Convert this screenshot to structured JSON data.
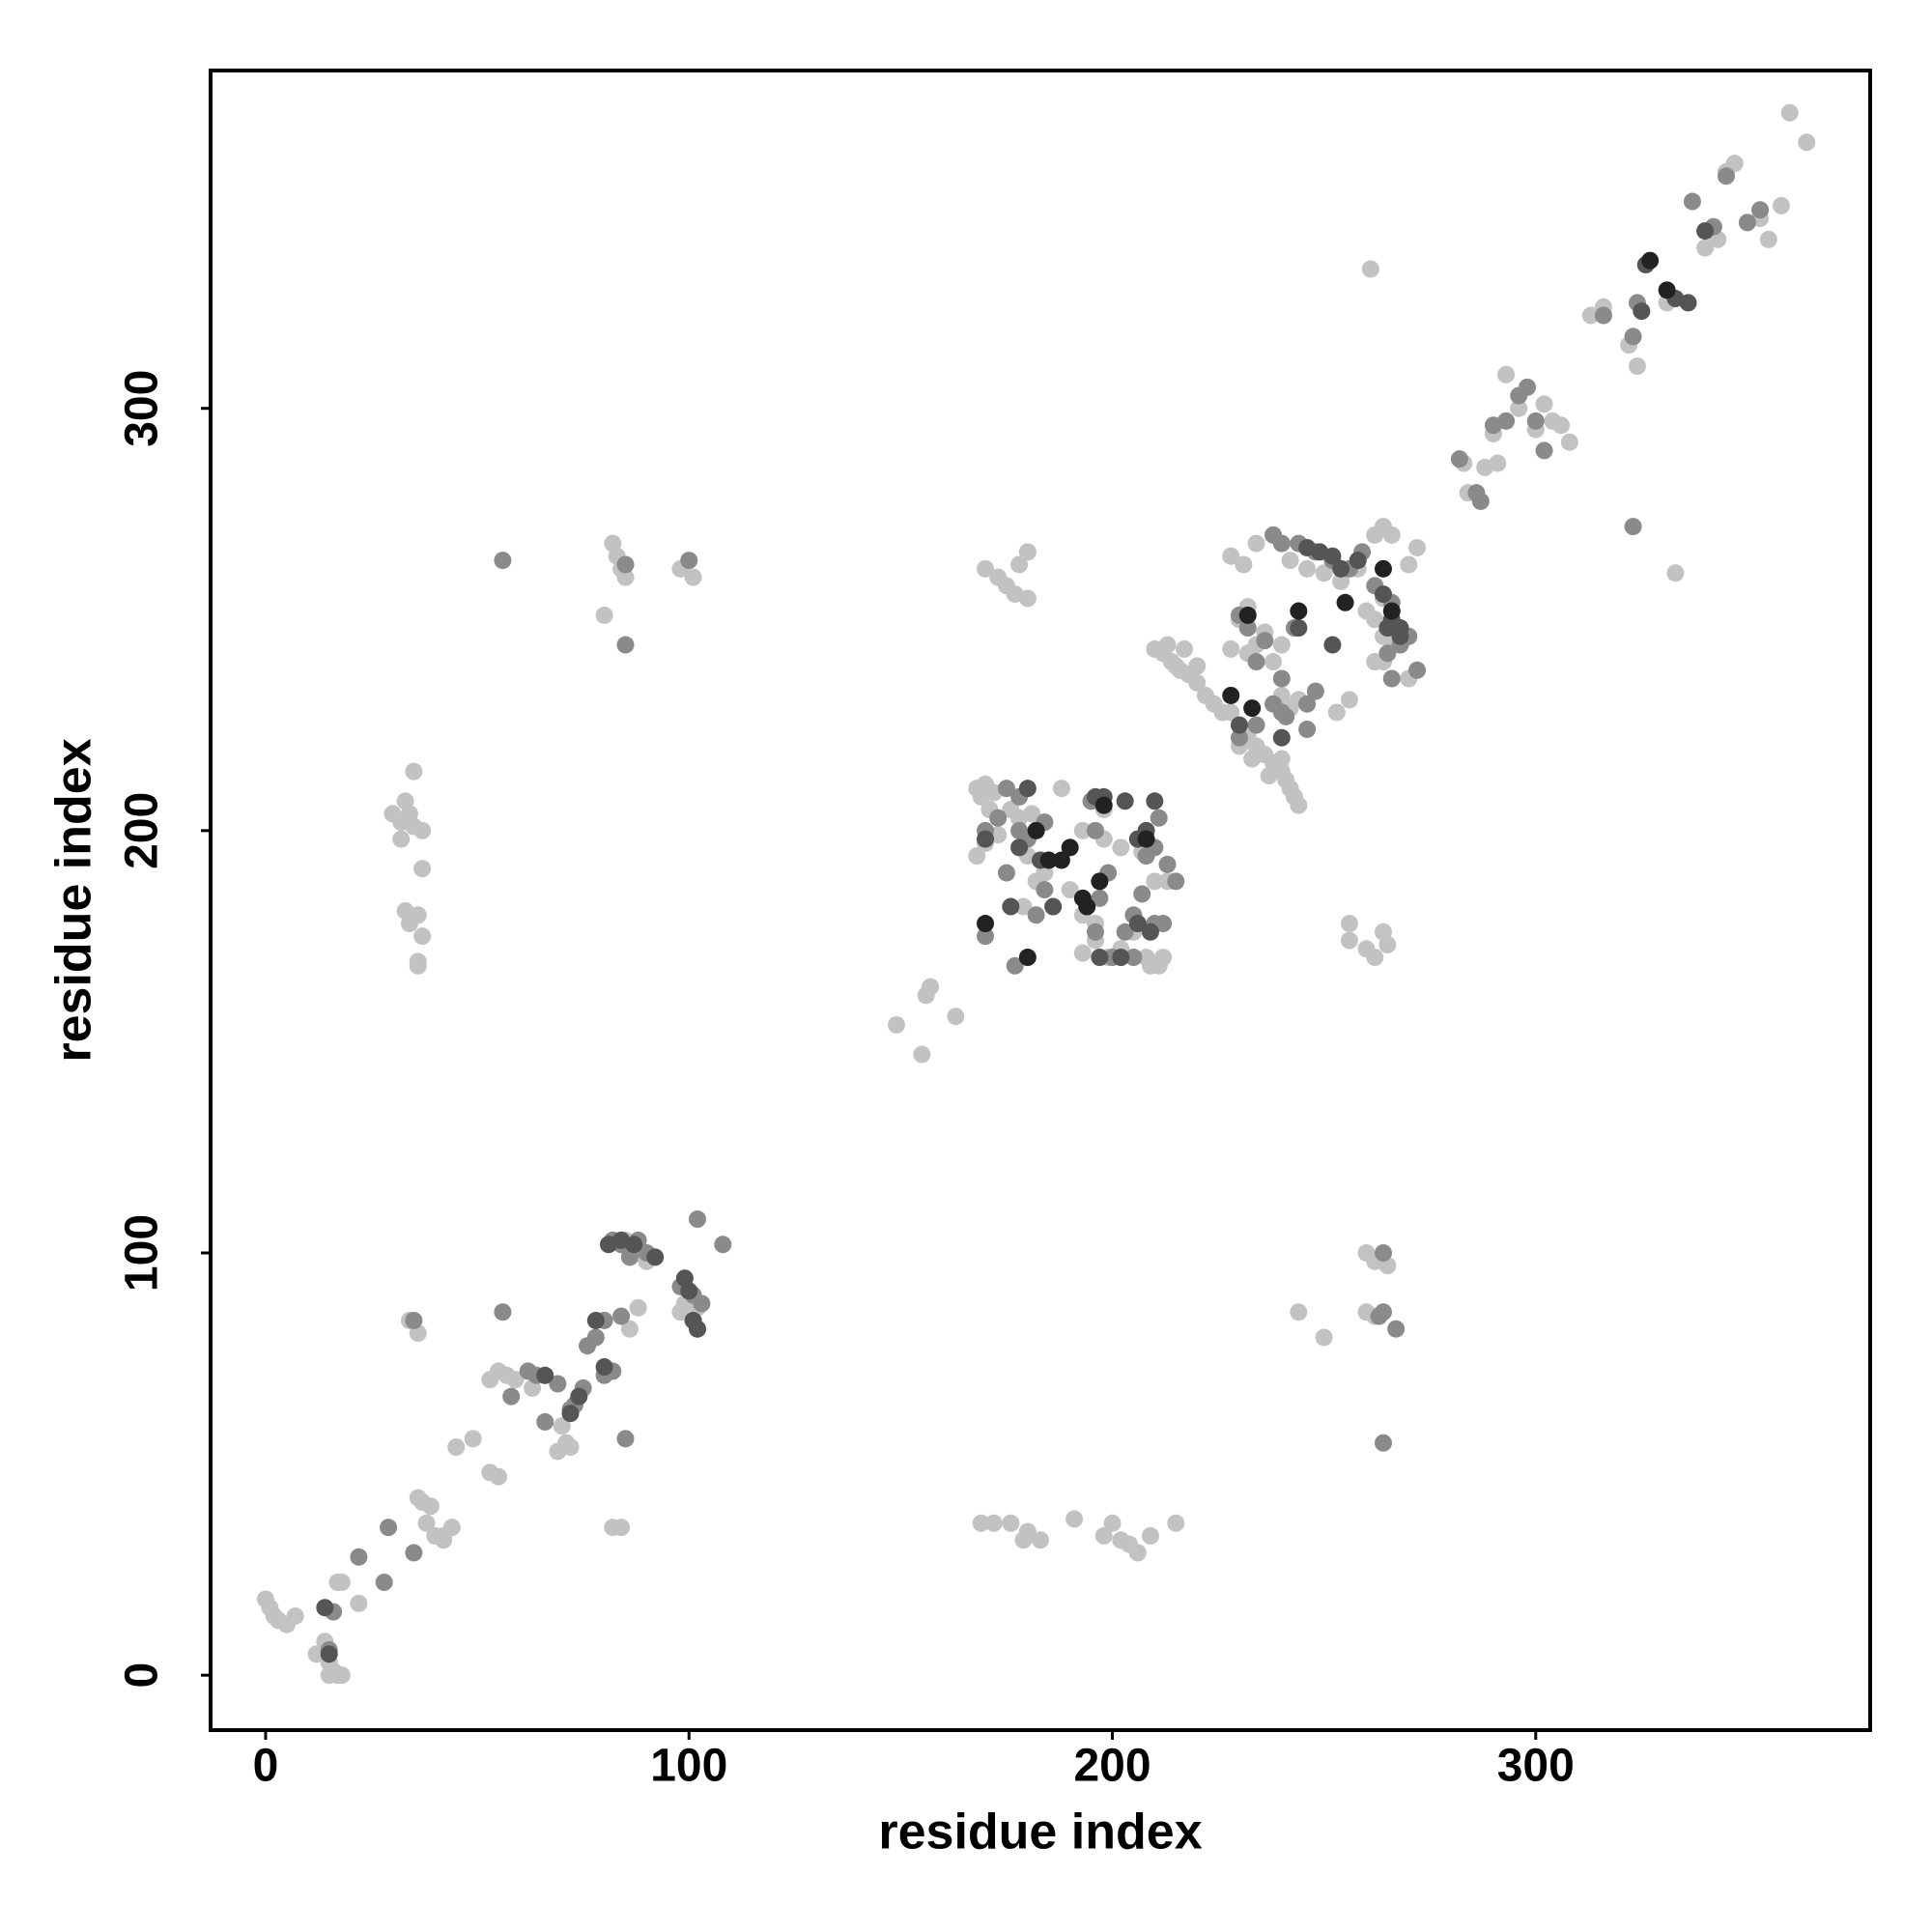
{
  "chart_data": {
    "type": "scatter",
    "x_label": "residue index",
    "y_label": "residue index",
    "xlim": [
      -13,
      379
    ],
    "ylim": [
      -13,
      380
    ],
    "xticks": [
      0,
      100,
      200,
      300
    ],
    "yticks": [
      0,
      100,
      200,
      300
    ],
    "grid": false,
    "series": [
      {
        "color": "#c2c2c2",
        "x": [
          0,
          1,
          2,
          3,
          5,
          7,
          14,
          12,
          15,
          16,
          17,
          18,
          15,
          17,
          18,
          22,
          36,
          37,
          39,
          38,
          40,
          42,
          44,
          42,
          45,
          49,
          55,
          53,
          53,
          55,
          57,
          59,
          63,
          70,
          71,
          69,
          72,
          86,
          88,
          85,
          88,
          90,
          98,
          99,
          101,
          102,
          30,
          32,
          33,
          34,
          32,
          35,
          37,
          35,
          37,
          33,
          34,
          36,
          37,
          36,
          36,
          83,
          84,
          80,
          82,
          85,
          98,
          101,
          34,
          36,
          82,
          84,
          149,
          156,
          157,
          163,
          155,
          168,
          169,
          170,
          172,
          171,
          168,
          170,
          173,
          176,
          178,
          181,
          180,
          182,
          184,
          179,
          186,
          188,
          193,
          195,
          198,
          190,
          193,
          196,
          199,
          202,
          205,
          208,
          209,
          211,
          212,
          210,
          207,
          213,
          198,
          202,
          193,
          196,
          170,
          173,
          175,
          177,
          178,
          180,
          180,
          169,
          172,
          176,
          180,
          183,
          191,
          198,
          202,
          204,
          206,
          209,
          215,
          200,
          179,
          210,
          212,
          214,
          216,
          218,
          220,
          222,
          224,
          226,
          228,
          215,
          213,
          217,
          220,
          232,
          234,
          236,
          238,
          240,
          242,
          243,
          244,
          237,
          241,
          233,
          230,
          232,
          234,
          230,
          232,
          228,
          236,
          240,
          238,
          240,
          242,
          244,
          253,
          256,
          240,
          228,
          231,
          234,
          238,
          242,
          246,
          250,
          254,
          258,
          260,
          262,
          264,
          266,
          270,
          262,
          264,
          266,
          272,
          270,
          264,
          256,
          256,
          260,
          262,
          264,
          265,
          260,
          262,
          265,
          260,
          262,
          244,
          250,
          264,
          262,
          288,
          283,
          284,
          291,
          290,
          293,
          296,
          300,
          302,
          308,
          313,
          316,
          322,
          324,
          331,
          340,
          343,
          345,
          347,
          353,
          355,
          358,
          360,
          364,
          261,
          333,
          304,
          306
        ],
        "y": [
          18,
          16,
          14,
          13,
          12,
          14,
          8,
          5,
          3,
          1,
          0,
          0,
          0,
          22,
          22,
          17,
          42,
          41,
          40,
          36,
          33,
          33,
          35,
          32,
          54,
          56,
          47,
          48,
          70,
          72,
          71,
          70,
          68,
          59,
          55,
          53,
          54,
          82,
          87,
          103,
          100,
          98,
          86,
          88,
          84,
          87,
          204,
          202,
          207,
          204,
          198,
          201,
          200,
          214,
          191,
          181,
          178,
          180,
          175,
          169,
          168,
          265,
          262,
          251,
          268,
          260,
          262,
          260,
          84,
          81,
          35,
          35,
          154,
          161,
          163,
          156,
          147,
          210,
          208,
          211,
          209,
          205,
          194,
          197,
          199,
          205,
          203,
          204,
          194,
          188,
          190,
          182,
          182,
          210,
          200,
          207,
          205,
          186,
          180,
          178,
          170,
          172,
          176,
          170,
          168,
          168,
          170,
          188,
          195,
          188,
          198,
          196,
          171,
          174,
          262,
          260,
          258,
          256,
          263,
          266,
          255,
          36,
          36,
          36,
          34,
          32,
          37,
          33,
          32,
          31,
          29,
          33,
          36,
          36,
          32,
          243,
          242,
          240,
          238,
          237,
          235,
          232,
          230,
          228,
          228,
          239,
          244,
          243,
          239,
          222,
          220,
          218,
          216,
          214,
          210,
          208,
          206,
          213,
          212,
          217,
          220,
          242,
          244,
          250,
          253,
          243,
          247,
          244,
          240,
          232,
          229,
          231,
          228,
          231,
          217,
          265,
          263,
          268,
          270,
          264,
          262,
          261,
          259,
          262,
          252,
          250,
          246,
          244,
          236,
          270,
          272,
          270,
          267,
          263,
          240,
          178,
          174,
          172,
          170,
          176,
          173,
          100,
          98,
          97,
          86,
          85,
          86,
          80,
          255,
          240,
          286,
          287,
          280,
          287,
          294,
          308,
          300,
          295,
          301,
          292,
          322,
          324,
          315,
          310,
          325,
          338,
          340,
          356,
          358,
          345,
          340,
          348,
          370,
          363,
          333,
          261,
          297,
          296
        ]
      },
      {
        "color": "#8a8a8a",
        "x": [
          16,
          15,
          22,
          28,
          29,
          35,
          56,
          58,
          62,
          64,
          66,
          69,
          72,
          73,
          75,
          76,
          78,
          80,
          82,
          80,
          84,
          82,
          84,
          86,
          88,
          90,
          98,
          101,
          103,
          102,
          108,
          102,
          85,
          85,
          56,
          85,
          100,
          35,
          170,
          170,
          173,
          175,
          178,
          178,
          175,
          177,
          182,
          184,
          195,
          196,
          197,
          199,
          203,
          205,
          207,
          208,
          210,
          211,
          205,
          210,
          212,
          213,
          215,
          196,
          200,
          180,
          184,
          230,
          232,
          236,
          234,
          240,
          246,
          230,
          234,
          238,
          240,
          241,
          243,
          246,
          248,
          238,
          240,
          244,
          248,
          252,
          256,
          259,
          262,
          265,
          266,
          268,
          270,
          272,
          266,
          264,
          264,
          264,
          267,
          282,
          286,
          287,
          290,
          293,
          296,
          298,
          300,
          302,
          316,
          323,
          324,
          323,
          337,
          350,
          353,
          345,
          342,
          263
        ],
        "y": [
          15,
          6,
          28,
          22,
          35,
          29,
          86,
          66,
          72,
          71,
          60,
          69,
          63,
          64,
          68,
          78,
          80,
          71,
          72,
          84,
          85,
          103,
          102,
          99,
          103,
          100,
          92,
          90,
          88,
          82,
          102,
          108,
          56,
          263,
          264,
          244,
          264,
          84,
          175,
          200,
          203,
          210,
          200,
          208,
          190,
          168,
          180,
          186,
          207,
          200,
          184,
          190,
          176,
          180,
          185,
          194,
          196,
          203,
          170,
          178,
          178,
          192,
          188,
          176,
          170,
          198,
          202,
          251,
          248,
          245,
          240,
          236,
          224,
          222,
          225,
          230,
          228,
          227,
          248,
          230,
          233,
          270,
          268,
          268,
          266,
          264,
          262,
          266,
          258,
          242,
          236,
          244,
          246,
          238,
          254,
          100,
          86,
          55,
          82,
          288,
          280,
          278,
          296,
          297,
          303,
          305,
          297,
          290,
          322,
          317,
          325,
          272,
          349,
          344,
          347,
          355,
          343,
          85
        ]
      },
      {
        "color": "#555555",
        "x": [
          14,
          15,
          66,
          72,
          74,
          78,
          80,
          84,
          87,
          92,
          99,
          100,
          101,
          102,
          81,
          170,
          176,
          178,
          180,
          183,
          186,
          196,
          198,
          203,
          206,
          208,
          210,
          209,
          197,
          202,
          206,
          230,
          240,
          244,
          246,
          249,
          252,
          254,
          252,
          258,
          264,
          266,
          268,
          268,
          265,
          325,
          326,
          333,
          340,
          336
        ],
        "y": [
          16,
          5,
          71,
          62,
          66,
          84,
          73,
          103,
          102,
          99,
          94,
          91,
          84,
          82,
          102,
          198,
          182,
          196,
          210,
          193,
          182,
          208,
          208,
          207,
          198,
          200,
          207,
          176,
          170,
          170,
          178,
          225,
          222,
          248,
          267,
          266,
          265,
          262,
          244,
          264,
          256,
          250,
          248,
          246,
          248,
          323,
          334,
          326,
          342,
          325
        ]
      },
      {
        "color": "#222222",
        "x": [
          170,
          180,
          182,
          185,
          188,
          190,
          193,
          194,
          197,
          198,
          208,
          228,
          233,
          244,
          255,
          264,
          232,
          327,
          331,
          266
        ],
        "y": [
          178,
          170,
          200,
          193,
          193,
          196,
          184,
          182,
          188,
          206,
          198,
          232,
          229,
          252,
          254,
          262,
          251,
          335,
          328,
          252
        ]
      }
    ]
  }
}
